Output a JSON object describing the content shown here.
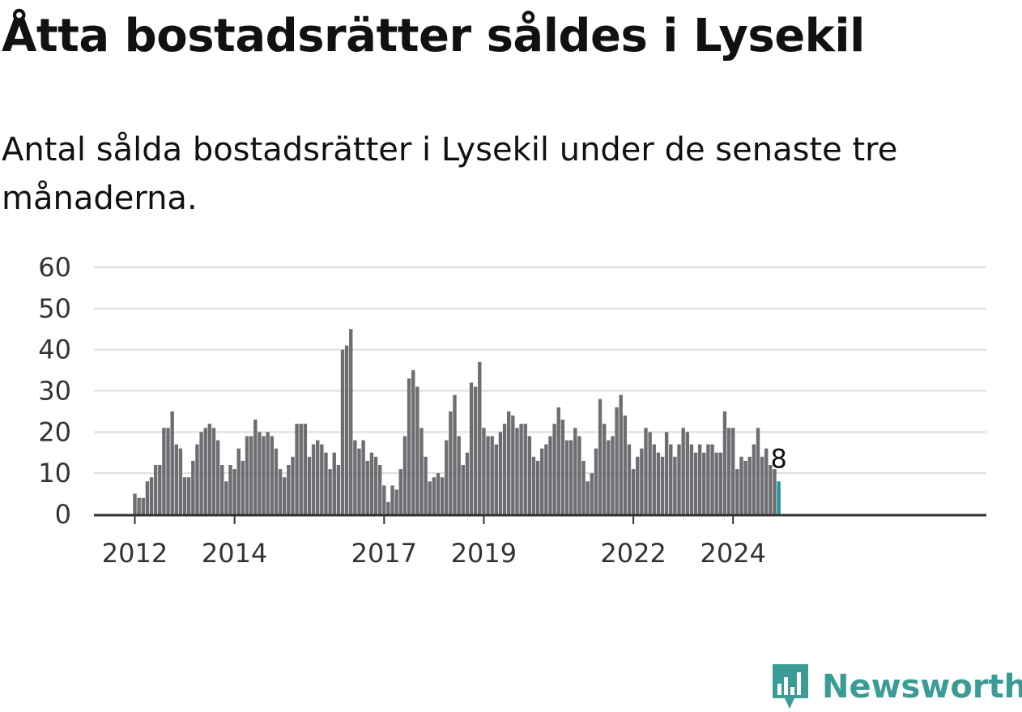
{
  "title": "Åtta bostadsrätter såldes i Lysekil",
  "subtitle": "Antal sålda bostadsrätter i Lysekil under de senaste tre månaderna.",
  "logo": {
    "text": "Newsworthy",
    "icon": "newsworthy-chart-icon",
    "color": "#3a9c95"
  },
  "colors": {
    "bar": "#6e6d72",
    "highlight": "#1d9a95",
    "grid": "#dddddd",
    "axis": "#333333"
  },
  "chart_data": {
    "type": "bar",
    "title": "Åtta bostadsrätter såldes i Lysekil",
    "subtitle": "Antal sålda bostadsrätter i Lysekil under de senaste tre månaderna.",
    "xlabel": "",
    "ylabel": "",
    "ylim": [
      0,
      60
    ],
    "yticks": [
      "0",
      "10",
      "20",
      "30",
      "40",
      "50",
      "60"
    ],
    "xtick_labels": [
      {
        "label": "2012",
        "index": 0
      },
      {
        "label": "2014",
        "index": 24
      },
      {
        "label": "2017",
        "index": 60
      },
      {
        "label": "2019",
        "index": 84
      },
      {
        "label": "2022",
        "index": 120
      },
      {
        "label": "2024",
        "index": 144
      }
    ],
    "grid": true,
    "legend": "none",
    "highlight_last": true,
    "last_value_label": "8",
    "values": [
      5,
      4,
      4,
      8,
      9,
      12,
      12,
      21,
      21,
      25,
      17,
      16,
      9,
      9,
      13,
      17,
      20,
      21,
      22,
      21,
      18,
      12,
      8,
      12,
      11,
      16,
      13,
      19,
      19,
      23,
      20,
      19,
      20,
      19,
      16,
      11,
      9,
      12,
      14,
      22,
      22,
      22,
      14,
      17,
      18,
      17,
      15,
      11,
      15,
      12,
      40,
      41,
      45,
      18,
      16,
      18,
      13,
      15,
      14,
      12,
      7,
      3,
      7,
      6,
      11,
      19,
      33,
      35,
      31,
      21,
      14,
      8,
      9,
      10,
      9,
      18,
      25,
      29,
      19,
      12,
      15,
      32,
      31,
      37,
      21,
      19,
      19,
      17,
      20,
      22,
      25,
      24,
      21,
      22,
      22,
      19,
      14,
      13,
      16,
      17,
      19,
      22,
      26,
      23,
      18,
      18,
      21,
      19,
      13,
      8,
      10,
      16,
      28,
      22,
      18,
      19,
      26,
      29,
      24,
      17,
      11,
      14,
      16,
      21,
      20,
      17,
      15,
      14,
      20,
      17,
      14,
      17,
      21,
      20,
      17,
      15,
      17,
      15,
      17,
      17,
      15,
      15,
      25,
      21,
      21,
      11,
      14,
      13,
      14,
      17,
      21,
      14,
      16,
      12,
      11,
      8
    ]
  }
}
